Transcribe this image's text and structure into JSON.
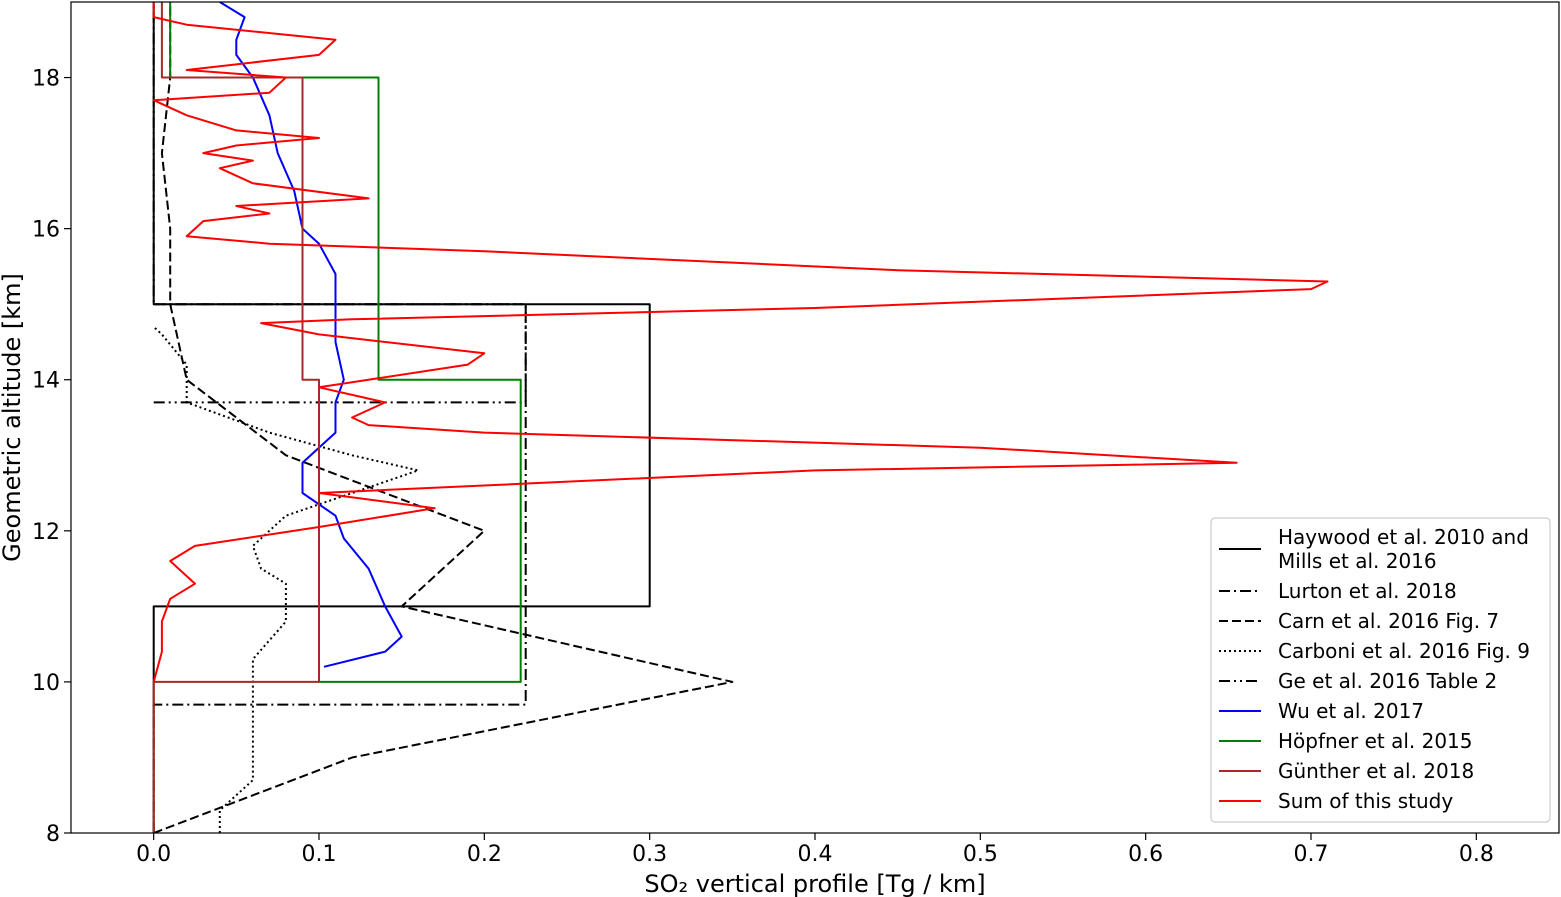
{
  "chart_data": {
    "type": "line",
    "xlabel": "SO₂ vertical profile [Tg / km]",
    "ylabel": "Geometric altitude [km]",
    "xlim": [
      -0.05,
      0.85
    ],
    "ylim": [
      8,
      19
    ],
    "xticks": [
      "0.0",
      "0.1",
      "0.2",
      "0.3",
      "0.4",
      "0.5",
      "0.6",
      "0.7",
      "0.8"
    ],
    "xtick_values": [
      0,
      0.1,
      0.2,
      0.3,
      0.4,
      0.5,
      0.6,
      0.7,
      0.8
    ],
    "yticks": [
      "8",
      "10",
      "12",
      "14",
      "16",
      "18"
    ],
    "ytick_values": [
      8,
      10,
      12,
      14,
      16,
      18
    ],
    "grid": false,
    "legend_position": "bottom-right",
    "series": [
      {
        "name": "Haywood et al. 2010 and Mills et al. 2016",
        "name_lines": [
          "Haywood et al. 2010 and",
          "Mills et al. 2016"
        ],
        "color": "#000000",
        "style": "solid",
        "points": [
          [
            0,
            8
          ],
          [
            0,
            11
          ],
          [
            0.3,
            11
          ],
          [
            0.3,
            15
          ],
          [
            0,
            15
          ],
          [
            0,
            19
          ]
        ]
      },
      {
        "name": "Lurton et al. 2018",
        "color": "#000000",
        "style": "dashdot",
        "points": [
          [
            0,
            8
          ],
          [
            0,
            9.7
          ],
          [
            0.225,
            9.7
          ],
          [
            0.225,
            15
          ],
          [
            0,
            15
          ],
          [
            0,
            19
          ]
        ]
      },
      {
        "name": "Carn et al. 2016 Fig. 7",
        "color": "#000000",
        "style": "dashed",
        "points": [
          [
            0,
            8
          ],
          [
            0.12,
            9.0
          ],
          [
            0.35,
            10.0
          ],
          [
            0.15,
            11.0
          ],
          [
            0.2,
            12.0
          ],
          [
            0.08,
            13.0
          ],
          [
            0.02,
            14.0
          ],
          [
            0.01,
            15.0
          ],
          [
            0.01,
            16.0
          ],
          [
            0.005,
            17.0
          ],
          [
            0.01,
            18.0
          ],
          [
            0.01,
            19.0
          ]
        ]
      },
      {
        "name": "Carboni et al. 2016 Fig. 9",
        "color": "#000000",
        "style": "dotted",
        "points": [
          [
            0.04,
            8.0
          ],
          [
            0.04,
            8.3
          ],
          [
            0.06,
            8.7
          ],
          [
            0.06,
            10.0
          ],
          [
            0.06,
            10.3
          ],
          [
            0.08,
            10.8
          ],
          [
            0.08,
            11.3
          ],
          [
            0.065,
            11.5
          ],
          [
            0.06,
            11.8
          ],
          [
            0.08,
            12.2
          ],
          [
            0.16,
            12.8
          ],
          [
            0.12,
            13.0
          ],
          [
            0.07,
            13.3
          ],
          [
            0.02,
            13.7
          ],
          [
            0.02,
            14.2
          ],
          [
            0.005,
            14.6
          ],
          [
            0.0,
            14.7
          ]
        ]
      },
      {
        "name": "Ge et al. 2016 Table 2",
        "color": "#000000",
        "style": "dashdotdot",
        "points": [
          [
            0,
            13.7
          ],
          [
            0.225,
            13.7
          ],
          [
            0.225,
            15.0
          ],
          [
            0.0,
            15.0
          ]
        ]
      },
      {
        "name": "Wu et al. 2017",
        "color": "#0000ff",
        "style": "solid",
        "points": [
          [
            0.103,
            10.2
          ],
          [
            0.14,
            10.4
          ],
          [
            0.15,
            10.6
          ],
          [
            0.14,
            11.0
          ],
          [
            0.13,
            11.5
          ],
          [
            0.115,
            11.9
          ],
          [
            0.11,
            12.2
          ],
          [
            0.09,
            12.5
          ],
          [
            0.09,
            12.9
          ],
          [
            0.11,
            13.3
          ],
          [
            0.11,
            13.7
          ],
          [
            0.115,
            14.0
          ],
          [
            0.11,
            14.5
          ],
          [
            0.11,
            15.0
          ],
          [
            0.11,
            15.4
          ],
          [
            0.1,
            15.8
          ],
          [
            0.09,
            16.0
          ],
          [
            0.085,
            16.5
          ],
          [
            0.075,
            17.0
          ],
          [
            0.07,
            17.5
          ],
          [
            0.06,
            18.0
          ],
          [
            0.05,
            18.3
          ],
          [
            0.05,
            18.5
          ],
          [
            0.055,
            18.8
          ],
          [
            0.04,
            19.0
          ]
        ]
      },
      {
        "name": "Höpfner et al. 2015",
        "color": "#008000",
        "style": "solid",
        "points": [
          [
            0.1,
            10.0
          ],
          [
            0.222,
            10.0
          ],
          [
            0.222,
            14.0
          ],
          [
            0.136,
            14.0
          ],
          [
            0.136,
            18.0
          ],
          [
            0.01,
            18.0
          ],
          [
            0.01,
            19.0
          ]
        ]
      },
      {
        "name": "Günther et al. 2018",
        "color": "#a52a2a",
        "style": "solid",
        "points": [
          [
            0,
            8
          ],
          [
            0,
            10.0
          ],
          [
            0.1,
            10.0
          ],
          [
            0.1,
            14.0
          ],
          [
            0.09,
            14.0
          ],
          [
            0.09,
            18.0
          ],
          [
            0.005,
            18.0
          ],
          [
            0.005,
            19.0
          ]
        ]
      },
      {
        "name": "Sum of this study",
        "color": "#ff0000",
        "style": "solid",
        "points": [
          [
            0.0,
            10.0
          ],
          [
            0.005,
            10.4
          ],
          [
            0.005,
            10.8
          ],
          [
            0.01,
            11.1
          ],
          [
            0.025,
            11.3
          ],
          [
            0.01,
            11.6
          ],
          [
            0.025,
            11.8
          ],
          [
            0.1,
            12.05
          ],
          [
            0.17,
            12.3
          ],
          [
            0.1,
            12.5
          ],
          [
            0.4,
            12.8
          ],
          [
            0.655,
            12.9
          ],
          [
            0.5,
            13.1
          ],
          [
            0.2,
            13.3
          ],
          [
            0.13,
            13.4
          ],
          [
            0.12,
            13.5
          ],
          [
            0.14,
            13.7
          ],
          [
            0.1,
            13.9
          ],
          [
            0.19,
            14.2
          ],
          [
            0.2,
            14.35
          ],
          [
            0.1,
            14.6
          ],
          [
            0.065,
            14.75
          ],
          [
            0.12,
            14.8
          ],
          [
            0.4,
            14.95
          ],
          [
            0.7,
            15.2
          ],
          [
            0.71,
            15.3
          ],
          [
            0.45,
            15.45
          ],
          [
            0.2,
            15.7
          ],
          [
            0.07,
            15.8
          ],
          [
            0.02,
            15.9
          ],
          [
            0.03,
            16.1
          ],
          [
            0.07,
            16.2
          ],
          [
            0.05,
            16.3
          ],
          [
            0.13,
            16.4
          ],
          [
            0.06,
            16.6
          ],
          [
            0.04,
            16.8
          ],
          [
            0.06,
            16.9
          ],
          [
            0.03,
            17.0
          ],
          [
            0.05,
            17.1
          ],
          [
            0.1,
            17.2
          ],
          [
            0.05,
            17.3
          ],
          [
            0.02,
            17.5
          ],
          [
            0.0,
            17.7
          ],
          [
            0.07,
            17.8
          ],
          [
            0.08,
            18.0
          ],
          [
            0.02,
            18.1
          ],
          [
            0.1,
            18.3
          ],
          [
            0.11,
            18.5
          ],
          [
            0.02,
            18.7
          ],
          [
            0.0,
            18.8
          ],
          [
            0.0,
            19.0
          ]
        ]
      }
    ]
  }
}
